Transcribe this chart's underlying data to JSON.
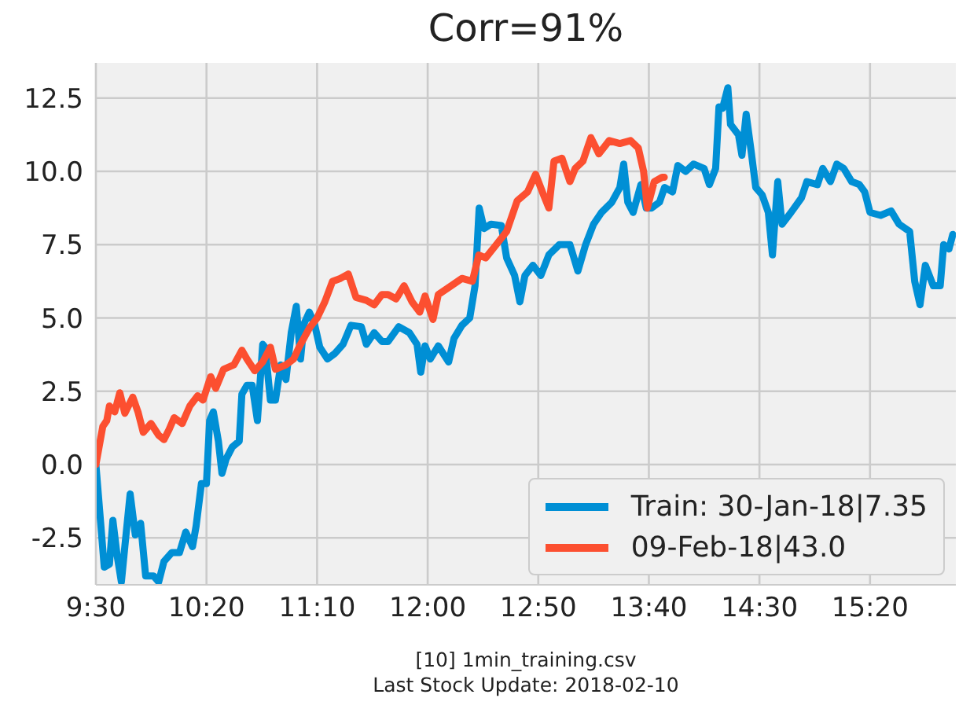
{
  "chart_data": {
    "type": "line",
    "title": "Corr=91%",
    "annotations": [
      "[10] 1min_training.csv",
      "Last Stock Update: 2018-02-10"
    ],
    "xlim": [
      9.5,
      15.98
    ],
    "xticks": [
      {
        "value": 9.5,
        "label": "9:30"
      },
      {
        "value": 10.333333,
        "label": "10:20"
      },
      {
        "value": 11.166667,
        "label": "11:10"
      },
      {
        "value": 12,
        "label": "12:00"
      },
      {
        "value": 12.833333,
        "label": "12:50"
      },
      {
        "value": 13.666667,
        "label": "13:40"
      },
      {
        "value": 14.5,
        "label": "14:30"
      },
      {
        "value": 15.333333,
        "label": "15:20"
      }
    ],
    "ylim": [
      -4.1,
      13.7
    ],
    "yticks": [
      -2.5,
      {
        "value": 0,
        "label": "0.0"
      },
      2.5,
      {
        "value": 5,
        "label": "5.0"
      },
      7.5,
      {
        "value": 10,
        "label": "10.0"
      },
      12.5
    ],
    "grid": true,
    "legend": "bottom right",
    "line_style": "solid",
    "marker": "none",
    "series": [
      {
        "name": "Train: 30-Jan-18|7.35",
        "color": "#008fd5",
        "x": [
          9.5,
          9.563,
          9.602,
          9.628,
          9.66,
          9.692,
          9.718,
          9.758,
          9.797,
          9.837,
          9.875,
          9.935,
          9.973,
          10.013,
          10.072,
          10.13,
          10.177,
          10.228,
          10.255,
          10.295,
          10.333,
          10.357,
          10.385,
          10.423,
          10.45,
          10.482,
          10.528,
          10.58,
          10.6,
          10.638,
          10.678,
          10.717,
          10.757,
          10.775,
          10.815,
          10.853,
          10.893,
          10.932,
          10.972,
          11.01,
          11.042,
          11.068,
          11.108,
          11.147,
          11.187,
          11.245,
          11.303,
          11.362,
          11.422,
          11.5,
          11.538,
          11.597,
          11.655,
          11.702,
          11.782,
          11.862,
          11.92,
          11.948,
          11.98,
          12.02,
          12.08,
          12.158,
          12.198,
          12.258,
          12.317,
          12.357,
          12.388,
          12.425,
          12.477,
          12.555,
          12.595,
          12.655,
          12.695,
          12.733,
          12.793,
          12.853,
          12.913,
          12.992,
          13.072,
          13.132,
          13.19,
          13.25,
          13.31,
          13.388,
          13.448,
          13.477,
          13.508,
          13.548,
          13.607,
          13.647,
          13.687,
          13.747,
          13.785,
          13.845,
          13.885,
          13.945,
          14.003,
          14.083,
          14.123,
          14.17,
          14.195,
          14.222,
          14.262,
          14.282,
          14.342,
          14.368,
          14.4,
          14.44,
          14.472,
          14.52,
          14.567,
          14.598,
          14.638,
          14.67,
          14.738,
          14.817,
          14.857,
          14.937,
          14.977,
          15.035,
          15.083,
          15.135,
          15.195,
          15.253,
          15.293,
          15.333,
          15.413,
          15.492,
          15.552,
          15.632,
          15.67,
          15.71,
          15.75,
          15.81,
          15.862,
          15.888,
          15.928,
          15.957
        ],
        "values": [
          0,
          -3.5,
          -3.4,
          -1.9,
          -3.1,
          -4.0,
          -2.8,
          -1.0,
          -2.4,
          -2.0,
          -3.8,
          -3.8,
          -4.0,
          -3.3,
          -3.0,
          -3.0,
          -2.3,
          -2.8,
          -2.1,
          -0.65,
          -0.65,
          1.5,
          1.8,
          0.8,
          -0.3,
          0.2,
          0.6,
          0.8,
          2.4,
          2.7,
          2.7,
          1.5,
          4.1,
          4.0,
          2.2,
          2.2,
          3.4,
          2.9,
          4.5,
          5.4,
          3.6,
          4.8,
          5.2,
          4.8,
          4.0,
          3.6,
          3.8,
          4.1,
          4.75,
          4.7,
          4.1,
          4.5,
          4.2,
          4.2,
          4.7,
          4.5,
          4.1,
          3.15,
          4.05,
          3.6,
          4.05,
          3.5,
          4.3,
          4.75,
          5.0,
          6.1,
          8.75,
          8.05,
          8.2,
          8.15,
          7.05,
          6.45,
          5.55,
          6.45,
          6.8,
          6.45,
          7.15,
          7.5,
          7.5,
          6.6,
          7.5,
          8.2,
          8.6,
          8.95,
          9.45,
          10.25,
          8.95,
          8.6,
          9.55,
          8.75,
          8.75,
          8.95,
          9.45,
          9.3,
          10.2,
          10.0,
          10.25,
          10.1,
          9.55,
          10.1,
          12.2,
          12.15,
          12.85,
          11.6,
          11.25,
          10.55,
          11.95,
          10.6,
          9.45,
          9.2,
          8.6,
          7.15,
          9.65,
          8.2,
          8.6,
          9.1,
          9.65,
          9.55,
          10.1,
          9.65,
          10.25,
          10.1,
          9.65,
          9.55,
          9.3,
          8.6,
          8.5,
          8.65,
          8.2,
          7.95,
          6.25,
          5.45,
          6.8,
          6.1,
          6.1,
          7.5,
          7.35,
          7.85
        ]
      },
      {
        "name": "09-Feb-18|43.0",
        "color": "#fc4f30",
        "x": [
          9.5,
          9.552,
          9.582,
          9.602,
          9.642,
          9.68,
          9.718,
          9.778,
          9.817,
          9.857,
          9.915,
          9.973,
          10.013,
          10.052,
          10.09,
          10.15,
          10.208,
          10.267,
          10.307,
          10.365,
          10.403,
          10.462,
          10.54,
          10.6,
          10.638,
          10.697,
          10.757,
          10.815,
          10.853,
          10.932,
          10.99,
          11.03,
          11.108,
          11.167,
          11.225,
          11.283,
          11.343,
          11.402,
          11.46,
          11.538,
          11.597,
          11.655,
          11.702,
          11.762,
          11.822,
          11.882,
          11.94,
          11.98,
          12.04,
          12.08,
          12.178,
          12.258,
          12.337,
          12.385,
          12.437,
          12.517,
          12.595,
          12.675,
          12.753,
          12.813,
          12.873,
          12.913,
          12.952,
          13.012,
          13.072,
          13.112,
          13.17,
          13.23,
          13.29,
          13.368,
          13.448,
          13.528,
          13.587,
          13.627,
          13.655,
          13.707,
          13.767,
          13.783
        ],
        "values": [
          0,
          1.3,
          1.5,
          2.0,
          1.8,
          2.45,
          1.75,
          2.3,
          1.8,
          1.1,
          1.4,
          1.0,
          0.85,
          1.2,
          1.6,
          1.4,
          2.0,
          2.35,
          2.2,
          3.0,
          2.6,
          3.25,
          3.4,
          3.9,
          3.6,
          3.2,
          3.5,
          4.0,
          3.25,
          3.4,
          3.6,
          4.0,
          4.65,
          5.0,
          5.55,
          6.25,
          6.35,
          6.5,
          5.7,
          5.6,
          5.45,
          5.8,
          5.8,
          5.65,
          6.1,
          5.55,
          5.2,
          5.75,
          4.95,
          5.8,
          6.1,
          6.35,
          6.25,
          7.15,
          7.05,
          7.5,
          7.95,
          9.0,
          9.3,
          9.9,
          9.2,
          8.75,
          10.35,
          10.45,
          9.65,
          10.1,
          10.35,
          11.15,
          10.6,
          11.05,
          10.95,
          11.05,
          10.8,
          10.0,
          8.75,
          9.65,
          9.8,
          9.8
        ]
      }
    ]
  }
}
